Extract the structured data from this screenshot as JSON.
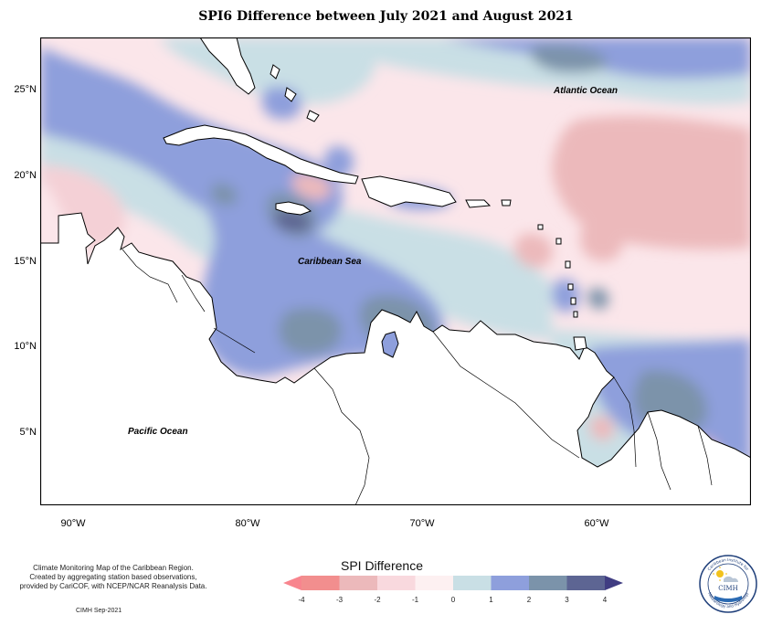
{
  "title": "SPI6 Difference between July 2021 and August 2021",
  "map": {
    "lat_labels": [
      "25°N",
      "20°N",
      "15°N",
      "10°N",
      "5°N"
    ],
    "lon_labels": [
      "90°W",
      "80°W",
      "70°W",
      "60°W"
    ],
    "ocean_labels": {
      "atlantic": "Atlantic Ocean",
      "caribbean": "Caribbean Sea",
      "pacific": "Pacific Ocean"
    }
  },
  "legend": {
    "title": "SPI Difference",
    "ticks": [
      "-4",
      "-3",
      "-2",
      "-1",
      "0",
      "1",
      "2",
      "3",
      "4"
    ],
    "colors": [
      "#f28e8e",
      "#ecb9bb",
      "#f9d9de",
      "#fdf0f1",
      "#c9dfe5",
      "#8e9fdc",
      "#7b93aa",
      "#5d6593"
    ],
    "arrow_left_color": "#f8858e",
    "arrow_right_color": "#403d82"
  },
  "credits": {
    "lines": [
      "Climate Monitoring Map of the Caribbean Region.",
      "Created by aggregating station based observations,",
      "provided by CariCOF, with NCEP/NCAR Reanalysis Data."
    ],
    "stamp": "CIMH  Sep-2021"
  },
  "logo": {
    "text": "CIMH",
    "ring_text_top": "Caribbean Institute for",
    "ring_text_bottom": "Meteorology and Hydrology"
  }
}
